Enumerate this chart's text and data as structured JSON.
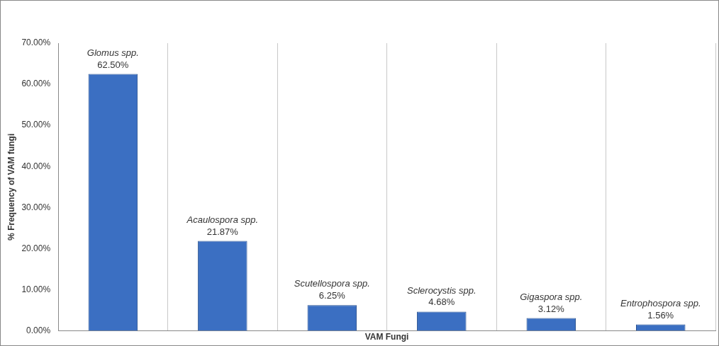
{
  "chart_data": {
    "type": "bar",
    "xlabel": "VAM Fungi",
    "ylabel": "% Frequency of VAM fungi",
    "categories": [
      "Glomus spp.",
      "Acaulospora spp.",
      "Scutellospora spp.",
      "Sclerocystis spp.",
      "Gigaspora spp.",
      "Entrophospora spp."
    ],
    "values": [
      62.5,
      21.87,
      6.25,
      4.68,
      3.12,
      1.56
    ],
    "value_labels": [
      "62.50%",
      "21.87%",
      "6.25%",
      "4.68%",
      "3.12%",
      "1.56%"
    ],
    "color": "#3b6fc2",
    "ylim": [
      0,
      70
    ],
    "yticks": [
      {
        "value": 0,
        "label": "0.00%"
      },
      {
        "value": 10,
        "label": "10.00%"
      },
      {
        "value": 20,
        "label": "20.00%"
      },
      {
        "value": 30,
        "label": "30.00%"
      },
      {
        "value": 40,
        "label": "40.00%"
      },
      {
        "value": 50,
        "label": "50.00%"
      },
      {
        "value": 60,
        "label": "60.00%"
      },
      {
        "value": 70,
        "label": "70.00%"
      }
    ],
    "grid": "x",
    "legend": false
  }
}
